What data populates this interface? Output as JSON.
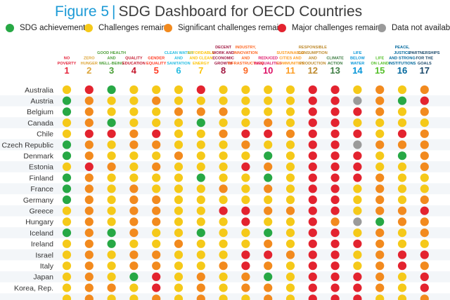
{
  "header": {
    "figure_label": "Figure 5",
    "separator": "|",
    "title": "SDG Dashboard for OECD Countries"
  },
  "legend": [
    {
      "label": "SDG achievement",
      "status": "A",
      "color": "#27a845"
    },
    {
      "label": "Challenges remain",
      "status": "C",
      "color": "#f5c919"
    },
    {
      "label": "Significant challenges remain",
      "status": "S",
      "color": "#f28a1e"
    },
    {
      "label": "Major challenges remain",
      "status": "M",
      "color": "#e3232f"
    },
    {
      "label": "Data not available",
      "status": "N",
      "color": "#9a9a9a"
    }
  ],
  "chart_data": {
    "type": "heatmap",
    "title": "SDG Dashboard for OECD Countries",
    "status_legend": {
      "A": "SDG achievement",
      "C": "Challenges remain",
      "S": "Significant challenges remain",
      "M": "Major challenges remain",
      "N": "Data not available"
    },
    "goals": [
      {
        "number": "1",
        "label": [
          "NO",
          "POVERTY"
        ],
        "color": "#e5243b"
      },
      {
        "number": "2",
        "label": [
          "ZERO",
          "HUNGER"
        ],
        "color": "#dda63a"
      },
      {
        "number": "3",
        "label": [
          "GOOD HEALTH",
          "AND",
          "WELL-BEING"
        ],
        "color": "#4c9f38"
      },
      {
        "number": "4",
        "label": [
          "QUALITY",
          "EDUCATION"
        ],
        "color": "#c5192d"
      },
      {
        "number": "5",
        "label": [
          "GENDER",
          "EQUALITY"
        ],
        "color": "#ff3a21"
      },
      {
        "number": "6",
        "label": [
          "CLEAN WATER",
          "AND",
          "SANITATION"
        ],
        "color": "#26bde2"
      },
      {
        "number": "7",
        "label": [
          "AFFORDABLE",
          "AND CLEAN",
          "ENERGY"
        ],
        "color": "#fcc30b"
      },
      {
        "number": "8",
        "label": [
          "DECENT",
          "WORK AND",
          "ECONOMIC",
          "GROWTH"
        ],
        "color": "#a21942"
      },
      {
        "number": "9",
        "label": [
          "INDUSTRY,",
          "INNOVATION",
          "AND",
          "INFRASTRUCTURE"
        ],
        "color": "#fd6925"
      },
      {
        "number": "10",
        "label": [
          "REDUCED",
          "INEQUALITIES"
        ],
        "color": "#dd1367"
      },
      {
        "number": "11",
        "label": [
          "SUSTAINABLE",
          "CITIES AND",
          "COMMUNITIES"
        ],
        "color": "#fd9d24"
      },
      {
        "number": "12",
        "label": [
          "RESPONSIBLE",
          "CONSUMPTION",
          "AND",
          "PRODUCTION"
        ],
        "color": "#bf8b2e"
      },
      {
        "number": "13",
        "label": [
          "CLIMATE",
          "ACTION"
        ],
        "color": "#3f7e44"
      },
      {
        "number": "14",
        "label": [
          "LIFE",
          "BELOW",
          "WATER"
        ],
        "color": "#0a97d9"
      },
      {
        "number": "15",
        "label": [
          "LIFE",
          "ON LAND"
        ],
        "color": "#56c02b"
      },
      {
        "number": "16",
        "label": [
          "PEACE,",
          "JUSTICE",
          "AND STRONG",
          "INSTITUTIONS"
        ],
        "color": "#00689d"
      },
      {
        "number": "17",
        "label": [
          "PARTNERSHIPS",
          "FOR THE",
          "GOALS"
        ],
        "color": "#19486a"
      }
    ],
    "rows": [
      {
        "country": "Australia",
        "values": [
          "C",
          "M",
          "A",
          "C",
          "C",
          "C",
          "M",
          "C",
          "C",
          "C",
          "C",
          "M",
          "M",
          "C",
          "S",
          "C",
          "S"
        ]
      },
      {
        "country": "Austria",
        "values": [
          "A",
          "S",
          "C",
          "C",
          "S",
          "C",
          "C",
          "C",
          "C",
          "C",
          "C",
          "M",
          "M",
          "N",
          "S",
          "A",
          "M"
        ]
      },
      {
        "country": "Belgium",
        "values": [
          "A",
          "S",
          "C",
          "C",
          "C",
          "S",
          "S",
          "S",
          "C",
          "C",
          "C",
          "M",
          "M",
          "M",
          "S",
          "C",
          "S"
        ]
      },
      {
        "country": "Canada",
        "values": [
          "C",
          "S",
          "A",
          "C",
          "C",
          "C",
          "A",
          "C",
          "C",
          "S",
          "C",
          "M",
          "M",
          "C",
          "C",
          "C",
          "C"
        ]
      },
      {
        "country": "Chile",
        "values": [
          "C",
          "M",
          "M",
          "S",
          "M",
          "C",
          "C",
          "S",
          "M",
          "M",
          "S",
          "M",
          "M",
          "M",
          "C",
          "M",
          "S"
        ]
      },
      {
        "country": "Czech Republic",
        "values": [
          "A",
          "S",
          "C",
          "S",
          "S",
          "C",
          "C",
          "C",
          "S",
          "C",
          "C",
          "M",
          "M",
          "N",
          "S",
          "S",
          "S"
        ]
      },
      {
        "country": "Denmark",
        "values": [
          "A",
          "S",
          "C",
          "C",
          "C",
          "S",
          "C",
          "C",
          "C",
          "A",
          "C",
          "M",
          "M",
          "M",
          "C",
          "A",
          "S"
        ]
      },
      {
        "country": "Estonia",
        "values": [
          "C",
          "M",
          "S",
          "C",
          "S",
          "C",
          "C",
          "C",
          "M",
          "S",
          "C",
          "M",
          "M",
          "M",
          "C",
          "C",
          "S"
        ]
      },
      {
        "country": "Finland",
        "values": [
          "A",
          "S",
          "C",
          "C",
          "C",
          "C",
          "A",
          "C",
          "C",
          "A",
          "C",
          "M",
          "M",
          "M",
          "S",
          "C",
          "C"
        ]
      },
      {
        "country": "France",
        "values": [
          "A",
          "S",
          "C",
          "S",
          "C",
          "C",
          "C",
          "S",
          "C",
          "S",
          "C",
          "M",
          "M",
          "C",
          "S",
          "C",
          "C"
        ]
      },
      {
        "country": "Germany",
        "values": [
          "A",
          "S",
          "C",
          "S",
          "S",
          "C",
          "C",
          "C",
          "C",
          "C",
          "C",
          "M",
          "M",
          "C",
          "S",
          "C",
          "S"
        ]
      },
      {
        "country": "Greece",
        "values": [
          "C",
          "S",
          "C",
          "S",
          "S",
          "C",
          "C",
          "M",
          "M",
          "S",
          "S",
          "M",
          "M",
          "C",
          "S",
          "S",
          "M"
        ]
      },
      {
        "country": "Hungary",
        "values": [
          "C",
          "S",
          "C",
          "S",
          "S",
          "C",
          "C",
          "C",
          "M",
          "C",
          "C",
          "M",
          "S",
          "N",
          "A",
          "S",
          "S"
        ]
      },
      {
        "country": "Iceland",
        "values": [
          "A",
          "S",
          "A",
          "S",
          "C",
          "C",
          "A",
          "C",
          "C",
          "A",
          "C",
          "M",
          "M",
          "C",
          "S",
          "C",
          "S"
        ]
      },
      {
        "country": "Ireland",
        "values": [
          "C",
          "S",
          "A",
          "C",
          "C",
          "S",
          "C",
          "C",
          "C",
          "S",
          "C",
          "M",
          "M",
          "M",
          "S",
          "C",
          "C"
        ]
      },
      {
        "country": "Israel",
        "values": [
          "C",
          "S",
          "C",
          "S",
          "S",
          "C",
          "C",
          "C",
          "M",
          "M",
          "S",
          "M",
          "M",
          "C",
          "S",
          "M",
          "M"
        ]
      },
      {
        "country": "Italy",
        "values": [
          "C",
          "S",
          "C",
          "S",
          "S",
          "C",
          "C",
          "S",
          "M",
          "S",
          "C",
          "M",
          "M",
          "C",
          "S",
          "M",
          "S"
        ]
      },
      {
        "country": "Japan",
        "values": [
          "C",
          "S",
          "C",
          "A",
          "M",
          "C",
          "S",
          "C",
          "S",
          "A",
          "C",
          "M",
          "M",
          "M",
          "S",
          "C",
          "M"
        ]
      },
      {
        "country": "Korea, Rep.",
        "values": [
          "C",
          "S",
          "S",
          "C",
          "M",
          "C",
          "S",
          "C",
          "S",
          "S",
          "C",
          "M",
          "M",
          "M",
          "S",
          "C",
          "M"
        ]
      },
      {
        "country": "",
        "values": [
          "C",
          "S",
          "C",
          "C",
          "S",
          "C",
          "S",
          "C",
          "C",
          "S",
          "C",
          "M",
          "M",
          "M",
          "C",
          "C",
          "S"
        ]
      }
    ]
  }
}
